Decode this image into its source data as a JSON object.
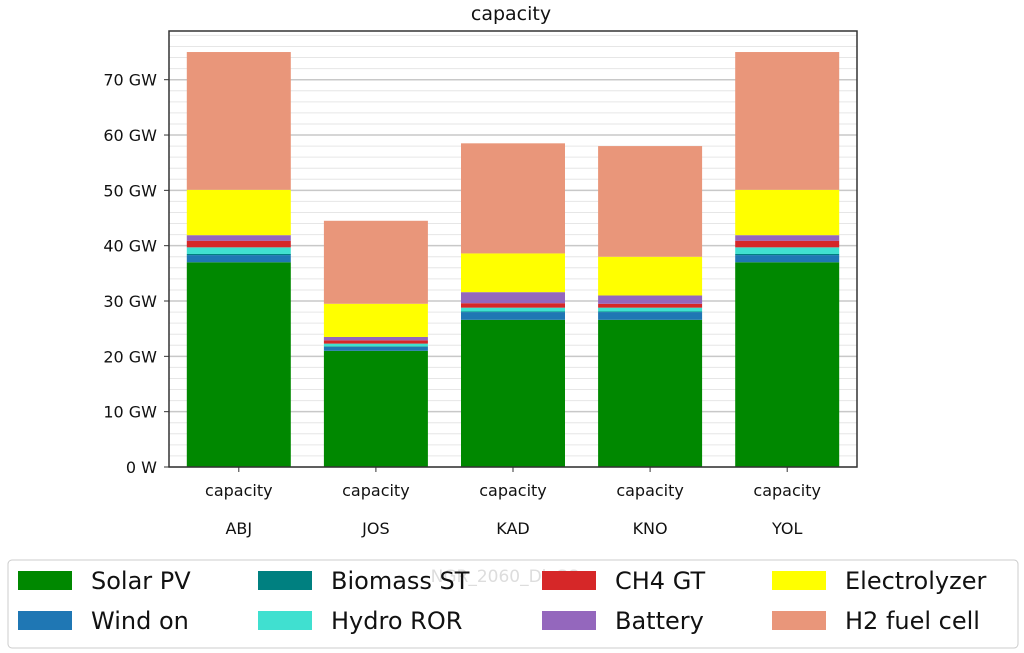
{
  "chart_data": {
    "type": "bar",
    "stacked": true,
    "title": "capacity",
    "categories": [
      "ABJ",
      "JOS",
      "KAD",
      "KNO",
      "YOL"
    ],
    "category_sublabel": "capacity",
    "ylabel": "",
    "xlabel": "",
    "ylim": [
      0,
      78.8
    ],
    "yticks": [
      0,
      10,
      20,
      30,
      40,
      50,
      60,
      70
    ],
    "ytick_labels": [
      "0 W",
      "10 GW",
      "20 GW",
      "30 GW",
      "40 GW",
      "50 GW",
      "60 GW",
      "70 GW"
    ],
    "grid": true,
    "legend_position": "bottom",
    "watermark": "NGR_2060_DisCOs",
    "series": [
      {
        "name": "Solar PV",
        "color": "#008800",
        "values": [
          37,
          21,
          26.6,
          26.6,
          37
        ]
      },
      {
        "name": "Wind on",
        "color": "#1f77b4",
        "values": [
          1.3,
          0.7,
          1.4,
          1.4,
          1.3
        ]
      },
      {
        "name": "Biomass ST",
        "color": "#008080",
        "values": [
          0.2,
          0.1,
          0.1,
          0.1,
          0.2
        ]
      },
      {
        "name": "Hydro ROR",
        "color": "#40e0d0",
        "values": [
          1.2,
          0.5,
          0.7,
          0.7,
          1.2
        ]
      },
      {
        "name": "CH4 GT",
        "color": "#d62728",
        "values": [
          1.2,
          0.6,
          0.8,
          0.7,
          1.2
        ]
      },
      {
        "name": "Battery",
        "color": "#9467bd",
        "values": [
          1.0,
          0.6,
          2.0,
          1.5,
          1.0
        ]
      },
      {
        "name": "Electrolyzer",
        "color": "#ffff00",
        "values": [
          8.2,
          6.0,
          7.0,
          7.0,
          8.2
        ]
      },
      {
        "name": "H2 fuel cell",
        "color": "#e9967a",
        "values": [
          24.9,
          15.0,
          19.9,
          20.0,
          24.9
        ]
      }
    ]
  }
}
